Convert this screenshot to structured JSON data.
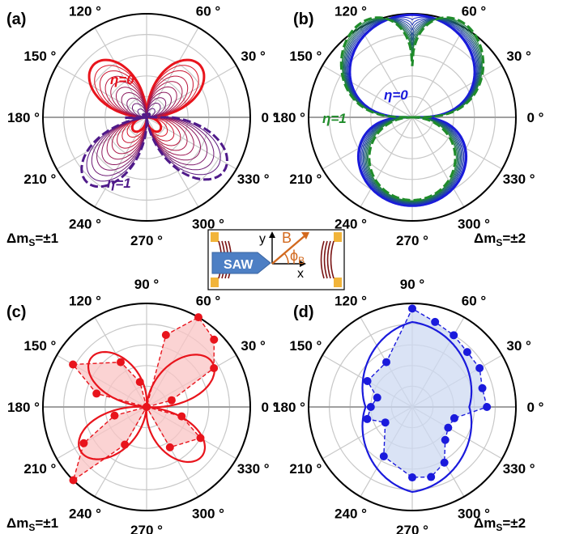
{
  "panels": [
    {
      "label": "(a)",
      "footer_main": "Δm",
      "footer_sub": "S",
      "footer_val": "=±1"
    },
    {
      "label": "(b)",
      "footer_main": "Δm",
      "footer_sub": "S",
      "footer_val": "=±2"
    },
    {
      "label": "(c)",
      "footer_main": "Δm",
      "footer_sub": "S",
      "footer_val": "=±1"
    },
    {
      "label": "(d)",
      "footer_main": "Δm",
      "footer_sub": "S",
      "footer_val": "=±2"
    }
  ],
  "angle_labels": [
    "0 °",
    "30 °",
    "60 °",
    "90 °",
    "120 °",
    "150 °",
    "180 °",
    "210 °",
    "240 °",
    "270 °",
    "300 °",
    "330 °"
  ],
  "eta_labels": {
    "a_top": "η=0",
    "a_bottom": "η=1",
    "b_inner": "η=0",
    "b_outer": "η=1"
  },
  "inset": {
    "saw": "SAW",
    "y": "y",
    "x": "x",
    "b": "B",
    "phi": "ϕ",
    "phi_sub": "B"
  },
  "colors": {
    "red": "#e8141c",
    "purple": "#4f1a8a",
    "blue": "#1a1adc",
    "green": "#1f8c2a",
    "grid": "#c8c8c8",
    "axis": "#a0a0a0",
    "fill_red": "#f9c4c4",
    "fill_blue": "#cddaf2",
    "saw": "#4d7fc4",
    "gold": "#f1b43a",
    "wire": "#7a1414"
  },
  "chart_data": [
    {
      "panel": "(a)",
      "type": "polar-line",
      "r_range": [
        0,
        1
      ],
      "series": [
        {
          "role": "eta_0",
          "formula": "r = |sin(2θ)|·(1.0 - 0.35η) ... tilted",
          "peak_deg": [
            45,
            135
          ],
          "peak_r": 0.72
        },
        {
          "role": "eta_1",
          "formula": "r = |sin(2θ)| lobes in lower half",
          "peak_deg": [
            200,
            340
          ],
          "peak_r": 0.98
        }
      ],
      "n_intermediate": 10
    },
    {
      "panel": "(b)",
      "type": "polar-line",
      "r_range": [
        0,
        1
      ],
      "series": [
        {
          "role": "eta_0",
          "peak_deg": [
            90,
            270
          ],
          "peak_r": 0.97
        },
        {
          "role": "eta_1",
          "peak_deg": [
            60,
            120,
            270
          ],
          "peak_r": 0.92
        }
      ],
      "n_intermediate": 10
    },
    {
      "panel": "(c)",
      "type": "polar-scatter",
      "r_range": [
        0,
        1
      ],
      "points": [
        {
          "theta": 0,
          "r": 0.0
        },
        {
          "theta": 15,
          "r": 0.25
        },
        {
          "theta": 30,
          "r": 0.75
        },
        {
          "theta": 45,
          "r": 0.92
        },
        {
          "theta": 60,
          "r": 1.0
        },
        {
          "theta": 75,
          "r": 0.72
        },
        {
          "theta": 90,
          "r": 0.0
        },
        {
          "theta": 105,
          "r": 0.25
        },
        {
          "theta": 120,
          "r": 0.5
        },
        {
          "theta": 150,
          "r": 0.82
        },
        {
          "theta": 165,
          "r": 0.5
        },
        {
          "theta": 180,
          "r": 0.0
        },
        {
          "theta": 195,
          "r": 0.32
        },
        {
          "theta": 210,
          "r": 0.7
        },
        {
          "theta": 225,
          "r": 1.0
        },
        {
          "theta": 240,
          "r": 0.42
        },
        {
          "theta": 270,
          "r": 0.0
        },
        {
          "theta": 300,
          "r": 0.45
        },
        {
          "theta": 330,
          "r": 0.6
        },
        {
          "theta": 345,
          "r": 0.35
        }
      ],
      "fit": "butterfly"
    },
    {
      "panel": "(d)",
      "type": "polar-scatter",
      "r_range": [
        0,
        1
      ],
      "points": [
        {
          "theta": 0,
          "r": 0.72
        },
        {
          "theta": 15,
          "r": 0.7
        },
        {
          "theta": 30,
          "r": 0.75
        },
        {
          "theta": 45,
          "r": 0.75
        },
        {
          "theta": 60,
          "r": 0.8
        },
        {
          "theta": 75,
          "r": 0.85
        },
        {
          "theta": 90,
          "r": 0.95
        },
        {
          "theta": 120,
          "r": 0.5
        },
        {
          "theta": 150,
          "r": 0.5
        },
        {
          "theta": 165,
          "r": 0.35
        },
        {
          "theta": 180,
          "r": 0.4
        },
        {
          "theta": 195,
          "r": 0.45
        },
        {
          "theta": 210,
          "r": 0.3
        },
        {
          "theta": 240,
          "r": 0.55
        },
        {
          "theta": 270,
          "r": 0.68
        },
        {
          "theta": 285,
          "r": 0.7
        },
        {
          "theta": 300,
          "r": 0.62
        },
        {
          "theta": 315,
          "r": 0.45
        },
        {
          "theta": 330,
          "r": 0.4
        },
        {
          "theta": 345,
          "r": 0.42
        }
      ],
      "fit": "peanut"
    }
  ]
}
